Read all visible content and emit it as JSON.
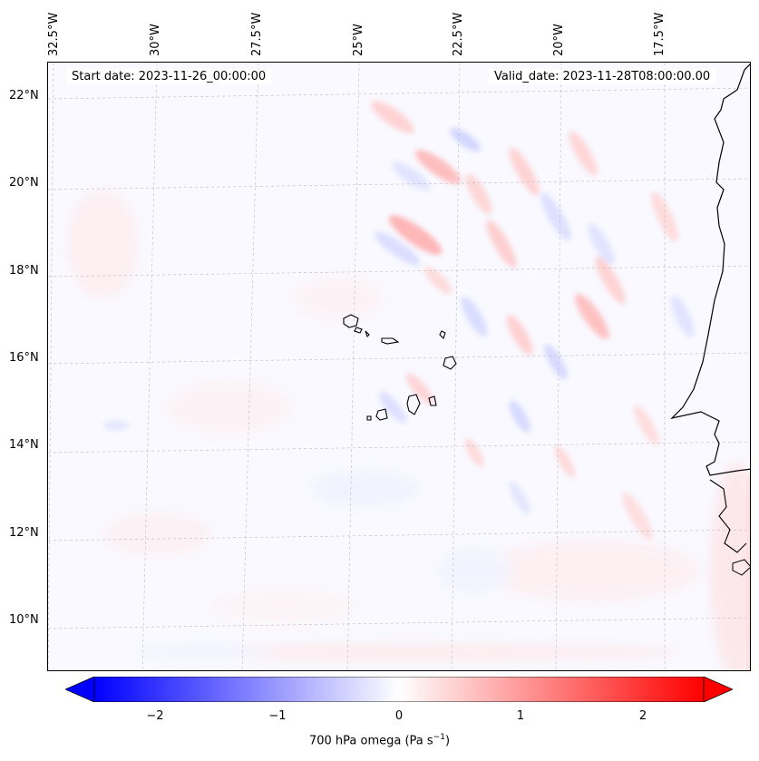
{
  "header": {
    "start_date": "Start date: 2023-11-26_00:00:00",
    "valid_date": "Valid_date: 2023-11-28T08:00:00.00"
  },
  "axes": {
    "lon_labels": [
      "32.5°W",
      "30°W",
      "27.5°W",
      "25°W",
      "22.5°W",
      "20°W",
      "17.5°W"
    ],
    "lat_labels": [
      "22°N",
      "20°N",
      "18°N",
      "16°N",
      "14°N",
      "12°N",
      "10°N"
    ]
  },
  "colorbar": {
    "ticks": [
      "−2",
      "−1",
      "0",
      "1",
      "2"
    ],
    "label": "700 hPa omega (Pa s",
    "label_sup": "−1",
    "label_end": ")",
    "min": -2.5,
    "max": 2.5,
    "colormap": "bwr",
    "low_color": "#0000ff",
    "mid_color": "#ffffff",
    "high_color": "#ff0000"
  },
  "map": {
    "variable": "700 hPa omega",
    "coastline_color": "#000000",
    "gridlines": true
  }
}
